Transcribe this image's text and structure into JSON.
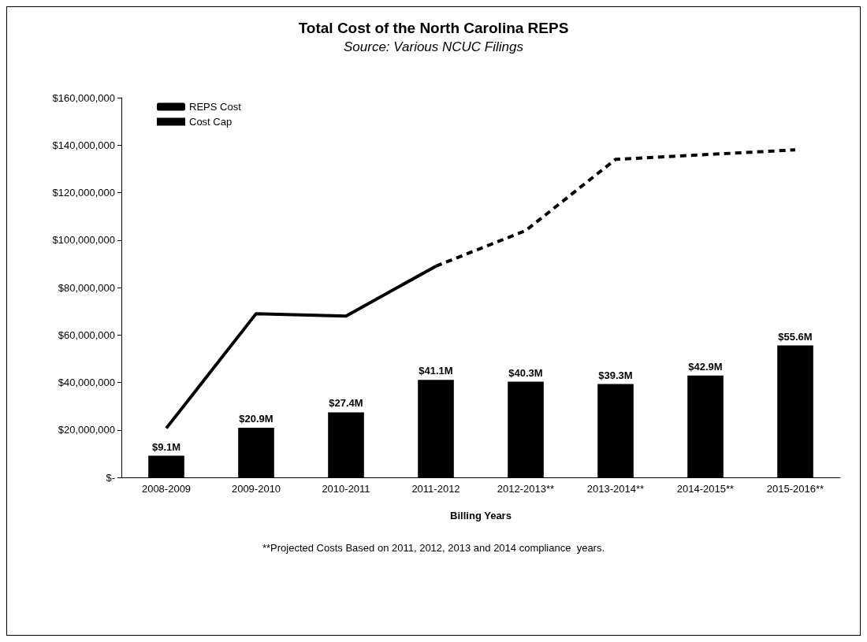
{
  "chart_data": {
    "type": "bar",
    "title": "Total Cost of the North Carolina REPS",
    "subtitle": "Source: Various NCUC Filings",
    "xlabel": "Billing Years",
    "categories": [
      "2008-2009",
      "2009-2010",
      "2010-2011",
      "2011-2012",
      "2012-2013**",
      "2013-2014**",
      "2014-2015**",
      "2015-2016**"
    ],
    "series": [
      {
        "name": "REPS Cost",
        "color": "#000000",
        "values": [
          9100000,
          20900000,
          27400000,
          41100000,
          40300000,
          39300000,
          42900000,
          55600000
        ],
        "value_labels": [
          "$9.1M",
          "$20.9M",
          "$27.4M",
          "$41.1M",
          "$40.3M",
          "$39.3M",
          "$42.9M",
          "$55.6M"
        ]
      },
      {
        "name": "Cost Cap",
        "type": "line",
        "color": "#000000",
        "line_style": "solid",
        "values": [
          20700000,
          69000000,
          68000000,
          89000000,
          null,
          null,
          null,
          null
        ]
      },
      {
        "type": "line",
        "color": "#000000",
        "line_style": "dashed",
        "values": [
          null,
          null,
          null,
          89000000,
          104000000,
          134000000,
          136000000,
          138000000
        ]
      }
    ],
    "ylim": [
      0,
      160000000
    ],
    "yticks": [
      {
        "value": 0,
        "label": "$-"
      },
      {
        "value": 20000000,
        "label": "$20,000,000"
      },
      {
        "value": 40000000,
        "label": "$40,000,000"
      },
      {
        "value": 60000000,
        "label": "$60,000,000"
      },
      {
        "value": 80000000,
        "label": "$80,000,000"
      },
      {
        "value": 100000000,
        "label": "$100,000,000"
      },
      {
        "value": 120000000,
        "label": "$120,000,000"
      },
      {
        "value": 140000000,
        "label": "$140,000,000"
      },
      {
        "value": 160000000,
        "label": "$160,000,000"
      }
    ],
    "grid": false,
    "legend": "top left",
    "marker": "none",
    "annotations": [
      "**Projected Costs Based on 2011, 2012, 2013 and 2014 compliance  years."
    ]
  }
}
